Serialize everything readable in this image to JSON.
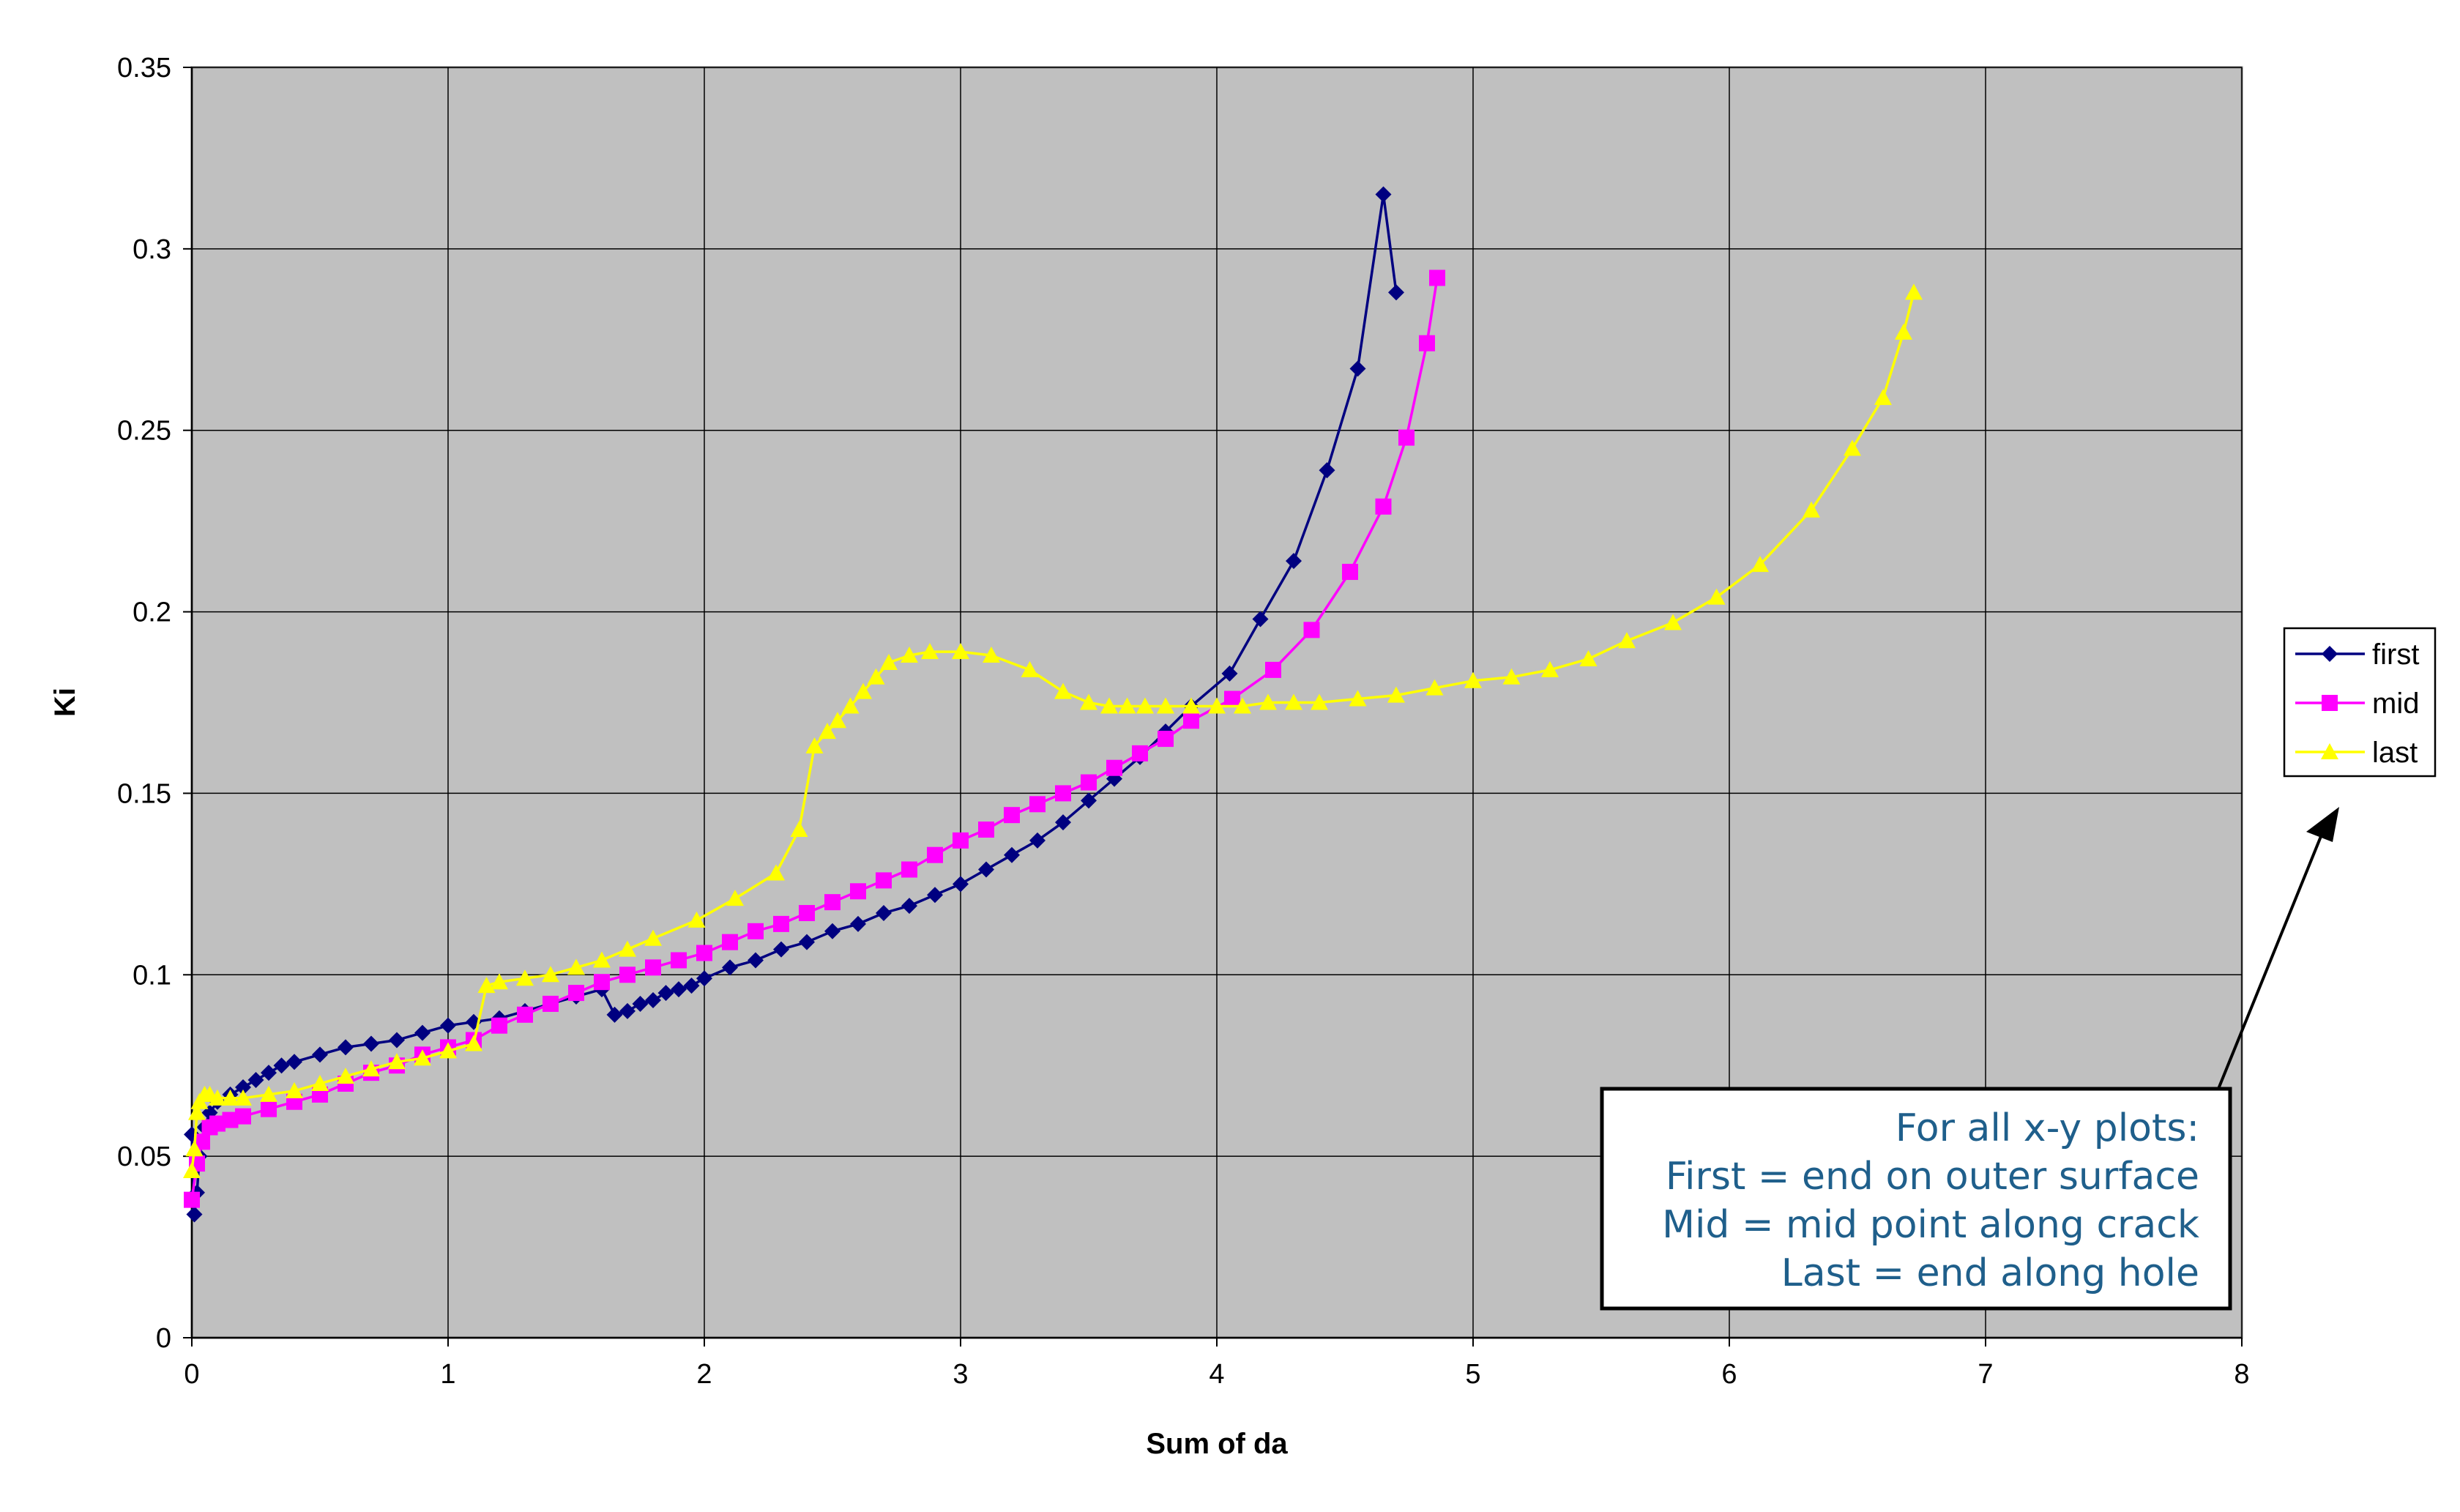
{
  "chart_data": {
    "type": "line",
    "title": "",
    "xlabel": "Sum of da",
    "ylabel": "Ki",
    "xlim": [
      0,
      8
    ],
    "ylim": [
      0,
      0.35
    ],
    "x_ticks": [
      "0",
      "1",
      "2",
      "3",
      "4",
      "5",
      "6",
      "7",
      "8"
    ],
    "y_ticks": [
      "0",
      "0.05",
      "0.1",
      "0.15",
      "0.2",
      "0.25",
      "0.3",
      "0.35"
    ],
    "grid": true,
    "plot_background": "#c0c0c0",
    "legend_position": "right",
    "series": [
      {
        "name": "first",
        "color": "#000080",
        "marker": "diamond",
        "x": [
          0.0,
          0.01,
          0.02,
          0.03,
          0.05,
          0.07,
          0.1,
          0.15,
          0.2,
          0.25,
          0.3,
          0.35,
          0.4,
          0.5,
          0.6,
          0.7,
          0.8,
          0.9,
          1.0,
          1.1,
          1.2,
          1.3,
          1.4,
          1.5,
          1.6,
          1.65,
          1.7,
          1.75,
          1.8,
          1.85,
          1.9,
          1.95,
          2.0,
          2.1,
          2.2,
          2.3,
          2.4,
          2.5,
          2.6,
          2.7,
          2.8,
          2.9,
          3.0,
          3.1,
          3.2,
          3.3,
          3.4,
          3.5,
          3.6,
          3.7,
          3.8,
          3.9,
          4.05,
          4.17,
          4.3,
          4.43,
          4.55,
          4.65,
          4.7
        ],
        "y": [
          0.056,
          0.034,
          0.04,
          0.05,
          0.058,
          0.062,
          0.065,
          0.067,
          0.069,
          0.071,
          0.073,
          0.075,
          0.076,
          0.078,
          0.08,
          0.081,
          0.082,
          0.084,
          0.086,
          0.087,
          0.088,
          0.09,
          0.092,
          0.094,
          0.096,
          0.089,
          0.09,
          0.092,
          0.093,
          0.095,
          0.096,
          0.097,
          0.099,
          0.102,
          0.104,
          0.107,
          0.109,
          0.112,
          0.114,
          0.117,
          0.119,
          0.122,
          0.125,
          0.129,
          0.133,
          0.137,
          0.142,
          0.148,
          0.154,
          0.16,
          0.167,
          0.174,
          0.183,
          0.198,
          0.214,
          0.239,
          0.267,
          0.315,
          0.288
        ]
      },
      {
        "name": "mid",
        "color": "#ff00ff",
        "marker": "square",
        "x": [
          0.0,
          0.02,
          0.04,
          0.07,
          0.1,
          0.15,
          0.2,
          0.3,
          0.4,
          0.5,
          0.6,
          0.7,
          0.8,
          0.9,
          1.0,
          1.1,
          1.2,
          1.3,
          1.4,
          1.5,
          1.6,
          1.7,
          1.8,
          1.9,
          2.0,
          2.1,
          2.2,
          2.3,
          2.4,
          2.5,
          2.6,
          2.7,
          2.8,
          2.9,
          3.0,
          3.1,
          3.2,
          3.3,
          3.4,
          3.5,
          3.6,
          3.7,
          3.8,
          3.9,
          4.06,
          4.22,
          4.37,
          4.52,
          4.65,
          4.74,
          4.82,
          4.86
        ],
        "y": [
          0.038,
          0.048,
          0.054,
          0.058,
          0.059,
          0.06,
          0.061,
          0.063,
          0.065,
          0.067,
          0.07,
          0.073,
          0.075,
          0.078,
          0.08,
          0.082,
          0.086,
          0.089,
          0.092,
          0.095,
          0.098,
          0.1,
          0.102,
          0.104,
          0.106,
          0.109,
          0.112,
          0.114,
          0.117,
          0.12,
          0.123,
          0.126,
          0.129,
          0.133,
          0.137,
          0.14,
          0.144,
          0.147,
          0.15,
          0.153,
          0.157,
          0.161,
          0.165,
          0.17,
          0.176,
          0.184,
          0.195,
          0.211,
          0.229,
          0.248,
          0.274,
          0.292
        ]
      },
      {
        "name": "last",
        "color": "#ffff00",
        "marker": "triangle",
        "x": [
          0.0,
          0.01,
          0.02,
          0.03,
          0.05,
          0.07,
          0.1,
          0.15,
          0.2,
          0.3,
          0.4,
          0.5,
          0.6,
          0.7,
          0.8,
          0.9,
          1.0,
          1.1,
          1.15,
          1.2,
          1.3,
          1.4,
          1.5,
          1.6,
          1.7,
          1.8,
          1.97,
          2.12,
          2.28,
          2.37,
          2.43,
          2.48,
          2.52,
          2.57,
          2.62,
          2.67,
          2.72,
          2.8,
          2.88,
          3.0,
          3.12,
          3.27,
          3.4,
          3.5,
          3.58,
          3.65,
          3.72,
          3.8,
          3.9,
          4.0,
          4.1,
          4.2,
          4.3,
          4.4,
          4.55,
          4.7,
          4.85,
          5.0,
          5.15,
          5.3,
          5.45,
          5.6,
          5.78,
          5.95,
          6.12,
          6.32,
          6.48,
          6.6,
          6.68,
          6.72
        ],
        "y": [
          0.046,
          0.052,
          0.062,
          0.065,
          0.067,
          0.067,
          0.066,
          0.066,
          0.066,
          0.067,
          0.068,
          0.07,
          0.072,
          0.074,
          0.076,
          0.077,
          0.079,
          0.081,
          0.097,
          0.098,
          0.099,
          0.1,
          0.102,
          0.104,
          0.107,
          0.11,
          0.115,
          0.121,
          0.128,
          0.14,
          0.163,
          0.167,
          0.17,
          0.174,
          0.178,
          0.182,
          0.186,
          0.188,
          0.189,
          0.189,
          0.188,
          0.184,
          0.178,
          0.175,
          0.174,
          0.174,
          0.174,
          0.174,
          0.174,
          0.174,
          0.174,
          0.175,
          0.175,
          0.175,
          0.176,
          0.177,
          0.179,
          0.181,
          0.182,
          0.184,
          0.187,
          0.192,
          0.197,
          0.204,
          0.213,
          0.228,
          0.245,
          0.259,
          0.277,
          0.288
        ]
      }
    ],
    "annotation": {
      "lines": [
        "For all x-y plots:",
        "First = end on outer surface",
        "Mid = mid point along crack",
        "Last = end along hole"
      ],
      "color": "#1f5f8b"
    }
  }
}
